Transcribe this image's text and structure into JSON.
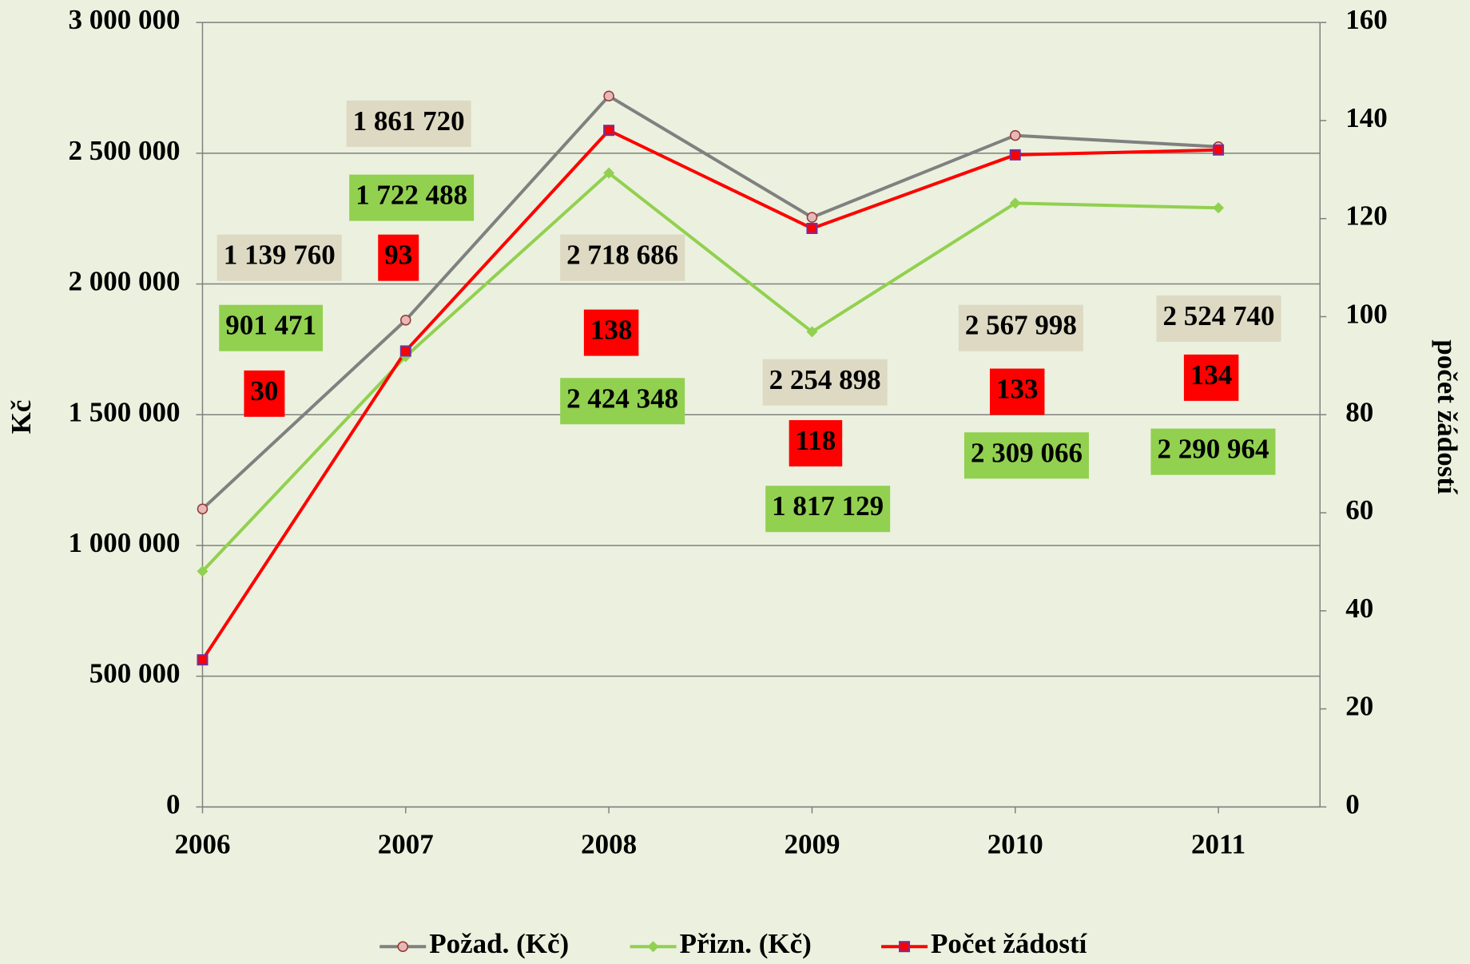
{
  "chart_data": {
    "type": "line",
    "categories": [
      "2006",
      "2007",
      "2008",
      "2009",
      "2010",
      "2011"
    ],
    "series": [
      {
        "name": "Požad. (Kč)",
        "color": "#808080",
        "marker": "circle",
        "axis": "y",
        "values": [
          1139760,
          1861720,
          2718686,
          2254898,
          2567998,
          2524740
        ],
        "value_labels": [
          "1 139 760",
          "1 861 720",
          "2 718 686",
          "2 254 898",
          "2 567 998",
          "2 524 740"
        ]
      },
      {
        "name": "Přizn. (Kč)",
        "color": "#92d050",
        "marker": "diamond",
        "axis": "y",
        "values": [
          901471,
          1722488,
          2424348,
          1817129,
          2309066,
          2290964
        ],
        "value_labels": [
          "901 471",
          "1 722 488",
          "2 424 348",
          "1 817 129",
          "2 309 066",
          "2 290 964"
        ]
      },
      {
        "name": "Počet žádostí",
        "color": "#ff0000",
        "marker": "square",
        "axis": "y2",
        "values": [
          30,
          93,
          138,
          118,
          133,
          134
        ]
      }
    ],
    "ylabel": "Kč",
    "y2label": "počet žádostí",
    "ylim": [
      0,
      3000000
    ],
    "yticks": [
      0,
      {
        "value": 500000,
        "label": "500 000"
      },
      {
        "value": 1000000,
        "label": "1 000 000"
      },
      {
        "value": 1500000,
        "label": "1 500 000"
      },
      {
        "value": 2000000,
        "label": "2 000 000"
      },
      {
        "value": 2500000,
        "label": "2 500 000"
      },
      {
        "value": 3000000,
        "label": "3 000 000"
      }
    ],
    "y2lim": [
      0,
      160
    ],
    "y2ticks": [
      0,
      20,
      40,
      60,
      80,
      100,
      120,
      140,
      160
    ],
    "grid": true,
    "legend": "bottom"
  }
}
